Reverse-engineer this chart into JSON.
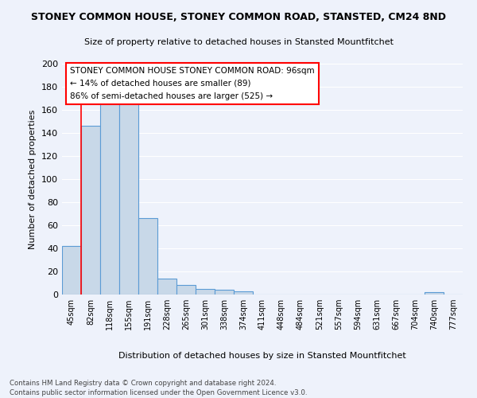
{
  "title": "STONEY COMMON HOUSE, STONEY COMMON ROAD, STANSTED, CM24 8ND",
  "subtitle": "Size of property relative to detached houses in Stansted Mountfitchet",
  "xlabel": "Distribution of detached houses by size in Stansted Mountfitchet",
  "ylabel": "Number of detached properties",
  "categories": [
    "45sqm",
    "82sqm",
    "118sqm",
    "155sqm",
    "191sqm",
    "228sqm",
    "265sqm",
    "301sqm",
    "338sqm",
    "374sqm",
    "411sqm",
    "448sqm",
    "484sqm",
    "521sqm",
    "557sqm",
    "594sqm",
    "631sqm",
    "667sqm",
    "704sqm",
    "740sqm",
    "777sqm"
  ],
  "values": [
    42,
    146,
    166,
    166,
    66,
    14,
    8,
    5,
    4,
    3,
    0,
    0,
    0,
    0,
    0,
    0,
    0,
    0,
    0,
    2,
    0
  ],
  "bar_color": "#c8d8e8",
  "bar_edge_color": "#5b9bd5",
  "annotation_title": "STONEY COMMON HOUSE STONEY COMMON ROAD: 96sqm",
  "annotation_line1": "← 14% of detached houses are smaller (89)",
  "annotation_line2": "86% of semi-detached houses are larger (525) →",
  "ylim": [
    0,
    200
  ],
  "yticks": [
    0,
    20,
    40,
    60,
    80,
    100,
    120,
    140,
    160,
    180,
    200
  ],
  "footer1": "Contains HM Land Registry data © Crown copyright and database right 2024.",
  "footer2": "Contains public sector information licensed under the Open Government Licence v3.0.",
  "bg_color": "#eef2fb",
  "plot_bg_color": "#eef2fb"
}
